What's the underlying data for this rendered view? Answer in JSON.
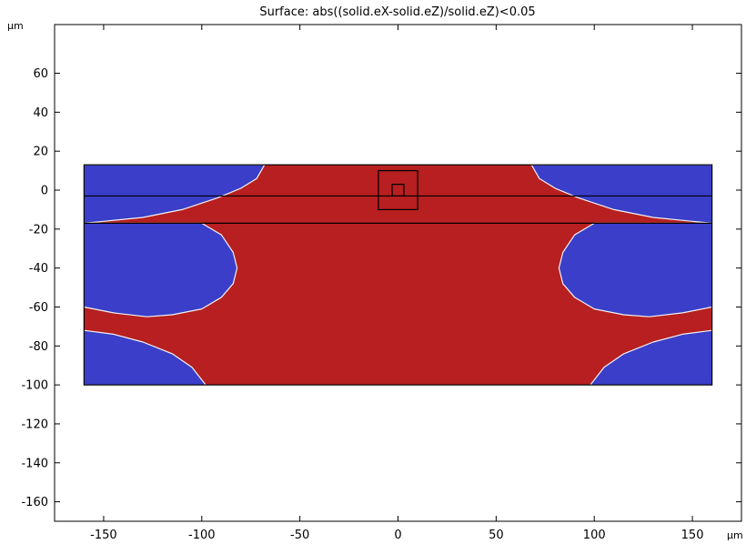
{
  "chart_data": {
    "type": "heatmap",
    "title": "Surface: abs((solid.eX-solid.eZ)/solid.eZ)<0.05",
    "x_unit": "µm",
    "y_unit": "µm",
    "xlim": [
      -175,
      175
    ],
    "ylim": [
      -170,
      85
    ],
    "x_ticks": [
      -150,
      -100,
      -50,
      0,
      50,
      100,
      150
    ],
    "x_tick_labels": [
      "-150",
      "-100",
      "-50",
      "0",
      "50",
      "100",
      "150"
    ],
    "y_ticks": [
      60,
      40,
      20,
      0,
      -20,
      -40,
      -60,
      -80,
      -100,
      -120,
      -140,
      -160
    ],
    "y_tick_labels": [
      "60",
      "40",
      "20",
      "0",
      "-20",
      "-40",
      "-60",
      "-80",
      "-100",
      "-120",
      "-140",
      "-160"
    ],
    "domain": {
      "x": [
        -160,
        160
      ],
      "y": [
        -100,
        13
      ]
    },
    "domain_lines_y": [
      -3,
      -17
    ],
    "markers": [
      {
        "x": [
          -10,
          10
        ],
        "y": [
          -10,
          10
        ]
      },
      {
        "x": [
          -3,
          3
        ],
        "y": [
          -3,
          3
        ]
      }
    ],
    "colors": {
      "true_region": "#b71f20",
      "false_region": "#3a3ec8",
      "contour": "#f2f2f2"
    },
    "false_regions": [
      {
        "location": "top-left",
        "points": [
          [
            -160,
            13
          ],
          [
            -68,
            13
          ],
          [
            -72,
            6
          ],
          [
            -80,
            1
          ],
          [
            -92,
            -4
          ],
          [
            -110,
            -10
          ],
          [
            -130,
            -14
          ],
          [
            -150,
            -16
          ],
          [
            -160,
            -17
          ]
        ]
      },
      {
        "location": "top-right",
        "points": [
          [
            160,
            13
          ],
          [
            68,
            13
          ],
          [
            72,
            6
          ],
          [
            80,
            1
          ],
          [
            92,
            -4
          ],
          [
            110,
            -10
          ],
          [
            130,
            -14
          ],
          [
            150,
            -16
          ],
          [
            160,
            -17
          ]
        ]
      },
      {
        "location": "middle-left",
        "points": [
          [
            -160,
            -17
          ],
          [
            -100,
            -17
          ],
          [
            -90,
            -23
          ],
          [
            -84,
            -32
          ],
          [
            -82,
            -40
          ],
          [
            -84,
            -48
          ],
          [
            -90,
            -55
          ],
          [
            -100,
            -61
          ],
          [
            -115,
            -64
          ],
          [
            -128,
            -65
          ],
          [
            -145,
            -63
          ],
          [
            -160,
            -60
          ]
        ]
      },
      {
        "location": "middle-right",
        "points": [
          [
            160,
            -17
          ],
          [
            100,
            -17
          ],
          [
            90,
            -23
          ],
          [
            84,
            -32
          ],
          [
            82,
            -40
          ],
          [
            84,
            -48
          ],
          [
            90,
            -55
          ],
          [
            100,
            -61
          ],
          [
            115,
            -64
          ],
          [
            128,
            -65
          ],
          [
            145,
            -63
          ],
          [
            160,
            -60
          ]
        ]
      },
      {
        "location": "bottom-left",
        "points": [
          [
            -160,
            -72
          ],
          [
            -145,
            -74
          ],
          [
            -130,
            -78
          ],
          [
            -115,
            -84
          ],
          [
            -105,
            -91
          ],
          [
            -98,
            -100
          ],
          [
            -160,
            -100
          ]
        ]
      },
      {
        "location": "bottom-right",
        "points": [
          [
            160,
            -72
          ],
          [
            145,
            -74
          ],
          [
            130,
            -78
          ],
          [
            115,
            -84
          ],
          [
            105,
            -91
          ],
          [
            98,
            -100
          ],
          [
            160,
            -100
          ]
        ]
      }
    ]
  }
}
